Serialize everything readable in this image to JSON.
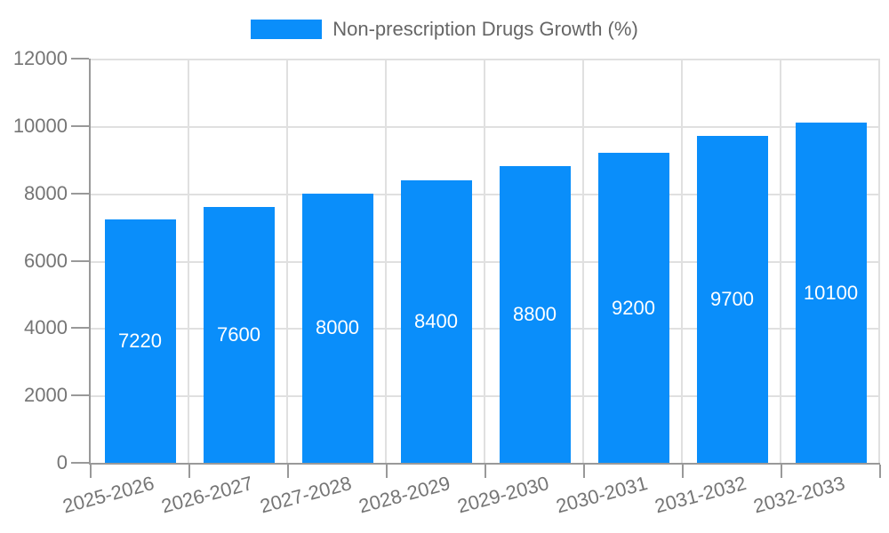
{
  "chart_data": {
    "type": "bar",
    "title": "Non-prescription Drugs Growth (%)",
    "legend": "Non-prescription Drugs Growth (%)",
    "legend_position": "top",
    "categories": [
      "2025-2026",
      "2026-2027",
      "2027-2028",
      "2028-2029",
      "2029-2030",
      "2030-2031",
      "2031-2032",
      "2032-2033"
    ],
    "values": [
      7220,
      7600,
      8000,
      8400,
      8800,
      9200,
      9700,
      10100
    ],
    "xlabel": "",
    "ylabel": "",
    "ylim": [
      0,
      12000
    ],
    "yticks": [
      0,
      2000,
      4000,
      6000,
      8000,
      10000,
      12000
    ],
    "grid": true,
    "bar_labels_inside": true,
    "x_label_rotation_deg": -15,
    "colors": {
      "bar": "#0A8EFA",
      "bar_label": "#FFFFFF",
      "axis": "#999999",
      "grid": "#E0E0E0",
      "tick_label": "#757575",
      "legend_text": "#666666",
      "background": "#FFFFFF"
    }
  }
}
